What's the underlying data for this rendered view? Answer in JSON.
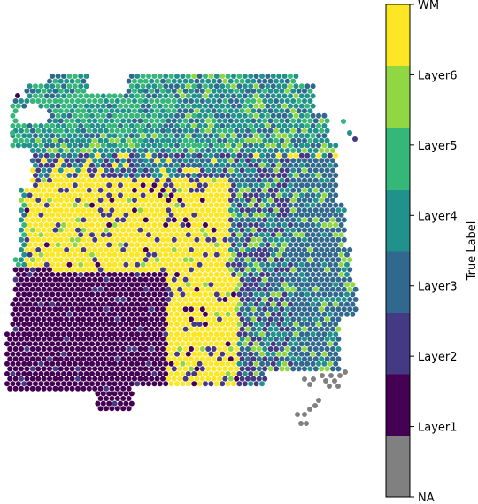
{
  "chart_data": {
    "type": "scatter",
    "title": "",
    "description_marker": "hexagonal spot map",
    "grid": false,
    "categories": [
      "NA",
      "Layer1",
      "Layer2",
      "Layer3",
      "Layer4",
      "Layer5",
      "Layer6",
      "WM"
    ],
    "colors": {
      "NA": "#808080",
      "Layer1": "#440154",
      "Layer2": "#443983",
      "Layer3": "#31688e",
      "Layer4": "#21918c",
      "Layer5": "#35b779",
      "Layer6": "#90d743",
      "WM": "#fde725"
    },
    "colorbar": {
      "label": "True Label",
      "placement": "right",
      "ticks": [
        "NA",
        "Layer1",
        "Layer2",
        "Layer3",
        "Layer4",
        "Layer5",
        "Layer6",
        "WM"
      ]
    }
  }
}
